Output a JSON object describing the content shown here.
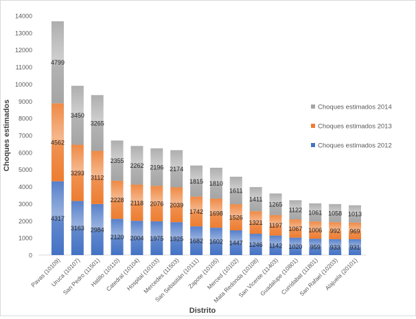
{
  "chart_data": {
    "type": "bar",
    "stacked": true,
    "xlabel": "Distrito",
    "ylabel": "Choques estimados",
    "ylim": [
      0,
      14000
    ],
    "yticks": [
      0,
      1000,
      2000,
      3000,
      4000,
      5000,
      6000,
      7000,
      8000,
      9000,
      10000,
      11000,
      12000,
      13000,
      14000
    ],
    "grid": false,
    "legend_position": "right",
    "categories": [
      "Pavas (10109)",
      "Uruca (10107)",
      "San Pedro (11501)",
      "Hatillo (10110)",
      "Catedral (10104)",
      "Hospital (10103)",
      "Mercedes (11503)",
      "San Sebastián (10111)",
      "Zapote (10105)",
      "Merced (10102)",
      "Mata Redonda (10108)",
      "San Vicente (11403)",
      "Guadalupe (10801)",
      "Curridabat (11801)",
      "San Rafael (10203)",
      "Alajuela (20101)"
    ],
    "series": [
      {
        "name": "Choques estimados 2012",
        "color": "#4472c4",
        "values": [
          4317,
          3163,
          2984,
          2120,
          2004,
          1975,
          1925,
          1682,
          1602,
          1447,
          1246,
          1142,
          1020,
          959,
          933,
          931
        ]
      },
      {
        "name": "Choques estimados 2013",
        "color": "#ed7d31",
        "values": [
          4562,
          3293,
          3112,
          2228,
          2118,
          2076,
          2039,
          1742,
          1698,
          1526,
          1321,
          1197,
          1067,
          1006,
          992,
          969
        ]
      },
      {
        "name": "Choques estimados 2014",
        "color": "#a5a5a5",
        "values": [
          4799,
          3450,
          3265,
          2355,
          2262,
          2196,
          2174,
          1815,
          1810,
          1611,
          1411,
          1265,
          1122,
          1061,
          1058,
          1013
        ]
      }
    ]
  }
}
